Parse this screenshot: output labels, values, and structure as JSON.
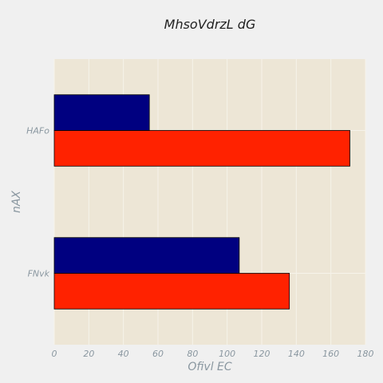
{
  "colors": {
    "figure_bg": "#f0f0f0",
    "plot_bg": "#ede6d6",
    "grid": "#f6f3ea",
    "text_muted": "#8a97a0",
    "title_text": "#222222",
    "bar_edge": "#000000"
  },
  "chart_data": {
    "type": "bar",
    "orientation": "horizontal",
    "title": "MhsoVdrzL dG",
    "xlabel": "Ofivl EC",
    "ylabel": "nAX",
    "categories": [
      "FNvk",
      "HAFo"
    ],
    "series": [
      {
        "color": "#ff2200",
        "values": [
          136,
          171
        ]
      },
      {
        "color": "#000080",
        "values": [
          107,
          55
        ]
      }
    ],
    "xlim": [
      0,
      180
    ],
    "xticks": [
      0,
      20,
      40,
      60,
      80,
      100,
      120,
      140,
      160,
      180
    ],
    "grid": true,
    "legend": "none"
  }
}
